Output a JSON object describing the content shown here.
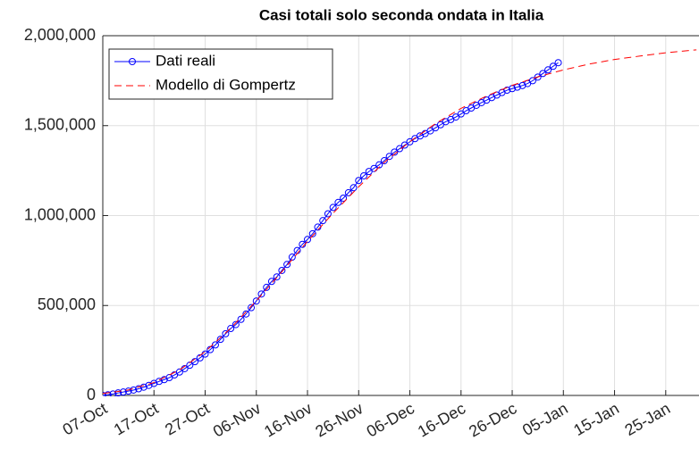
{
  "chart_data": {
    "type": "line",
    "title": "Casi totali solo seconda ondata in Italia",
    "xlim": [
      0,
      116.5
    ],
    "xticks": [
      {
        "value": 0,
        "label": "07-Oct"
      },
      {
        "value": 10,
        "label": "17-Oct"
      },
      {
        "value": 20,
        "label": "27-Oct"
      },
      {
        "value": 30,
        "label": "06-Nov"
      },
      {
        "value": 40,
        "label": "16-Nov"
      },
      {
        "value": 50,
        "label": "26-Nov"
      },
      {
        "value": 60,
        "label": "06-Dec"
      },
      {
        "value": 70,
        "label": "16-Dec"
      },
      {
        "value": 80,
        "label": "26-Dec"
      },
      {
        "value": 90,
        "label": "05-Jan"
      },
      {
        "value": 100,
        "label": "15-Jan"
      },
      {
        "value": 110,
        "label": "25-Jan"
      }
    ],
    "ylim": [
      0,
      2000000
    ],
    "yticks": [
      0,
      {
        "value": 500000,
        "label": "500,000"
      },
      {
        "value": 1000000,
        "label": "1,000,000"
      },
      {
        "value": 1500000,
        "label": "1,500,000"
      },
      {
        "value": 2000000,
        "label": "2,000,000"
      }
    ],
    "grid": true,
    "legend": "upper left",
    "series": [
      {
        "name": "Dati reali",
        "color": "#0000ff",
        "marker": "circle",
        "x": [
          0,
          1,
          2,
          3,
          4,
          5,
          6,
          7,
          8,
          9,
          10,
          11,
          12,
          13,
          14,
          15,
          16,
          17,
          18,
          19,
          20,
          21,
          22,
          23,
          24,
          25,
          26,
          27,
          28,
          29,
          30,
          31,
          32,
          33,
          34,
          35,
          36,
          37,
          38,
          39,
          40,
          41,
          42,
          43,
          44,
          45,
          46,
          47,
          48,
          49,
          50,
          51,
          52,
          53,
          54,
          55,
          56,
          57,
          58,
          59,
          60,
          61,
          62,
          63,
          64,
          65,
          66,
          67,
          68,
          69,
          70,
          71,
          72,
          73,
          74,
          75,
          76,
          77,
          78,
          79,
          80,
          81,
          82,
          83,
          84,
          85,
          86,
          87,
          88,
          89
        ],
        "values": [
          0,
          4000,
          8000,
          14000,
          19000,
          24000,
          30000,
          37000,
          46000,
          56000,
          67000,
          78000,
          88000,
          99000,
          114000,
          130000,
          149000,
          168000,
          188000,
          209000,
          230000,
          255000,
          281000,
          312000,
          343000,
          372000,
          394000,
          423000,
          453000,
          488000,
          525000,
          564000,
          601000,
          634000,
          659000,
          695000,
          728000,
          769000,
          806000,
          840000,
          867000,
          899000,
          936000,
          972000,
          1010000,
          1045000,
          1073000,
          1097000,
          1127000,
          1155000,
          1195000,
          1221000,
          1245000,
          1262000,
          1282000,
          1305000,
          1329000,
          1353000,
          1372000,
          1392000,
          1410000,
          1428000,
          1443000,
          1456000,
          1471000,
          1488000,
          1505000,
          1522000,
          1534000,
          1548000,
          1565000,
          1583000,
          1598000,
          1613000,
          1628000,
          1642000,
          1656000,
          1670000,
          1684000,
          1697000,
          1706000,
          1714000,
          1723000,
          1734000,
          1750000,
          1770000,
          1790000,
          1810000,
          1830000,
          1850000
        ]
      },
      {
        "name": "Modello di Gompertz",
        "color": "#ff0000",
        "dash": "dashed",
        "x": [
          0,
          5,
          10,
          15,
          20,
          25,
          30,
          35,
          40,
          45,
          50,
          55,
          60,
          65,
          70,
          75,
          80,
          85,
          90,
          95,
          100,
          105,
          110,
          115,
          116
        ],
        "values": [
          10400,
          30600,
          71700,
          142000,
          243000,
          374000,
          526000,
          688000,
          857000,
          1013000,
          1160000,
          1296000,
          1411000,
          1511000,
          1596000,
          1665000,
          1724000,
          1771000,
          1810000,
          1842000,
          1868000,
          1887000,
          1905000,
          1919000,
          1921000
        ]
      }
    ]
  }
}
